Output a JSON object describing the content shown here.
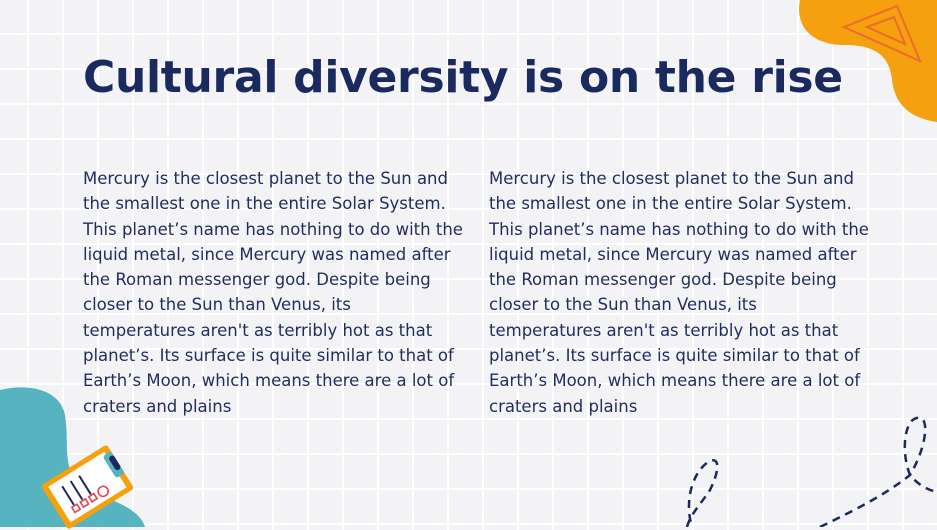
{
  "slide": {
    "title": "Cultural diversity is on the rise",
    "columns": [
      {
        "text": "Mercury is the closest planet to the Sun and the smallest one in the entire Solar System. This planet’s name has nothing to do with the liquid metal, since Mercury was named after the Roman messenger god. Despite being closer to the Sun than Venus, its temperatures aren't as terribly hot as that planet’s. Its surface is quite similar to that of Earth’s Moon, which means there are a lot of craters and plains"
      },
      {
        "text": "Mercury is the closest planet to the Sun and the smallest one in the entire Solar System. This planet’s name has nothing to do with the liquid metal, since Mercury was named after the Roman messenger god. Despite being closer to the Sun than Venus, its temperatures aren't as terribly hot as that planet’s. Its surface is quite similar to that of Earth’s Moon, which means there are a lot of craters and plains"
      }
    ]
  },
  "colors": {
    "title": "#1b2a5e",
    "orange": "#f5a00f",
    "teal": "#55b4bf",
    "background": "#f3f3f5"
  },
  "decorations": [
    "orange-blob",
    "triangle-icon",
    "teal-blob",
    "clipboard-icon",
    "dashed-path"
  ]
}
